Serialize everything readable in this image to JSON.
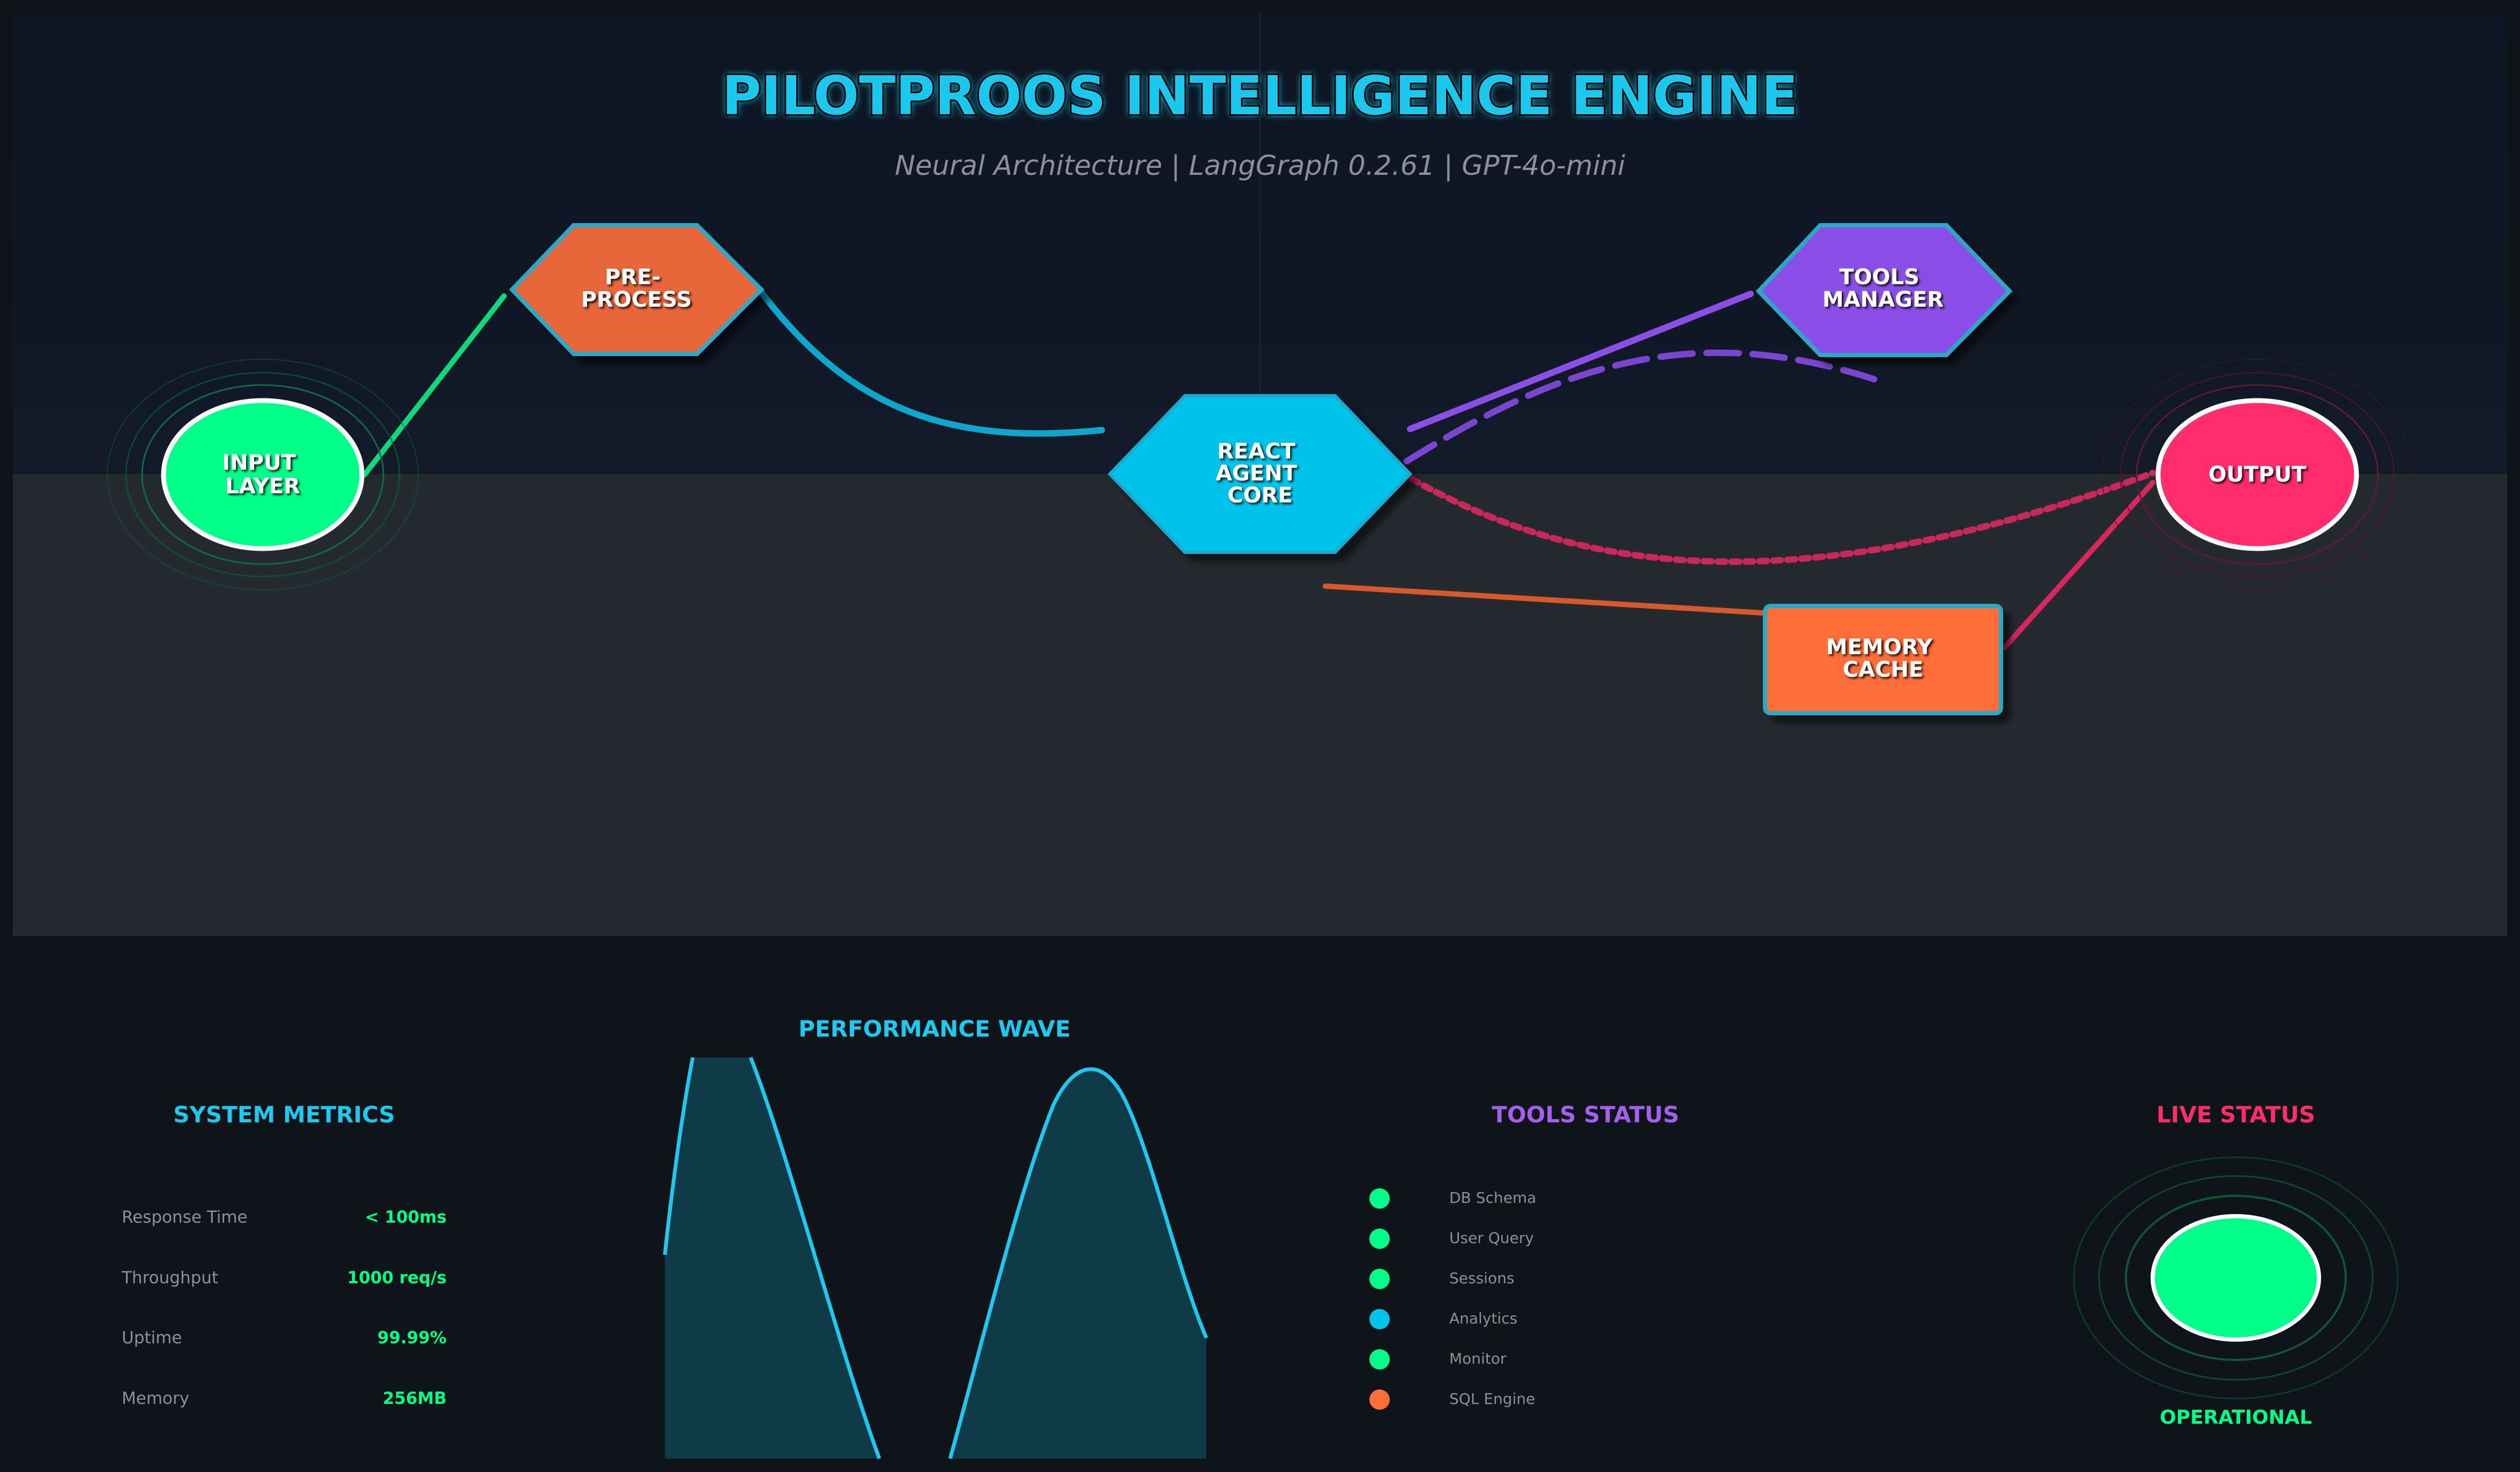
{
  "header": {
    "title": "PILOTPROOS INTELLIGENCE ENGINE",
    "subtitle": "Neural Architecture | LangGraph 0.2.61 | GPT-4o-mini"
  },
  "nodes": {
    "input": {
      "line1": "INPUT",
      "line2": "LAYER",
      "color": "#00ff88"
    },
    "preprocess": {
      "line1": "PRE-",
      "line2": "PROCESS",
      "color": "#e8663a"
    },
    "core": {
      "line1": "REACT",
      "line2": "AGENT",
      "line3": "CORE",
      "color": "#00c3ea"
    },
    "tools": {
      "line1": "TOOLS",
      "line2": "MANAGER",
      "color": "#8a4fe6"
    },
    "memory": {
      "line1": "MEMORY",
      "line2": "CACHE",
      "color": "#ff6d38"
    },
    "output": {
      "line1": "OUTPUT",
      "color": "#ff2d6b"
    }
  },
  "system_metrics": {
    "title": "SYSTEM METRICS",
    "rows": [
      {
        "label": "Response Time",
        "value": "< 100ms"
      },
      {
        "label": "Throughput",
        "value": "1000 req/s"
      },
      {
        "label": "Uptime",
        "value": "99.99%"
      },
      {
        "label": "Memory",
        "value": "256MB"
      }
    ]
  },
  "performance_wave": {
    "title": "PERFORMANCE WAVE"
  },
  "tools_status": {
    "title": "TOOLS STATUS",
    "items": [
      {
        "label": "DB Schema",
        "color": "#00ff88"
      },
      {
        "label": "User Query",
        "color": "#00ff88"
      },
      {
        "label": "Sessions",
        "color": "#00ff88"
      },
      {
        "label": "Analytics",
        "color": "#00c3ea"
      },
      {
        "label": "Monitor",
        "color": "#00ff88"
      },
      {
        "label": "SQL Engine",
        "color": "#ff6d38"
      }
    ]
  },
  "live_status": {
    "title": "LIVE STATUS",
    "state": "OPERATIONAL",
    "color": "#00ff88"
  },
  "colors": {
    "accent_cyan": "#1ec8ee",
    "accent_purple": "#a55ff0",
    "accent_pink": "#ff2d6b",
    "accent_green": "#00ff88"
  }
}
